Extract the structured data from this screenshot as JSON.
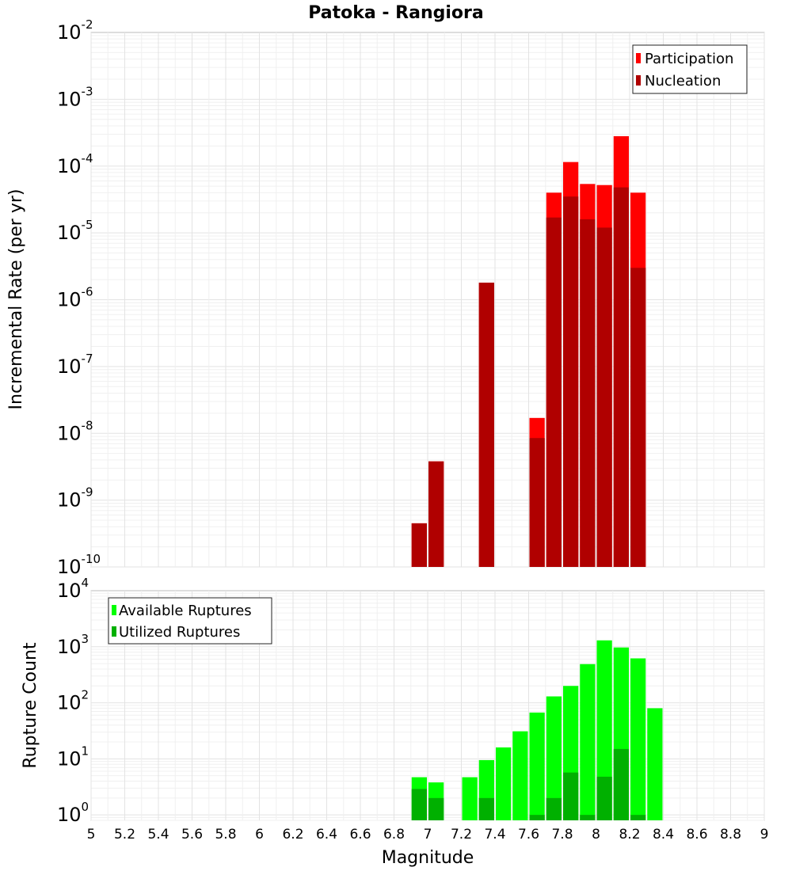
{
  "chart_data": [
    {
      "type": "bar",
      "title": "Patoka - Rangiora",
      "xlabel": "",
      "ylabel": "Incremental Rate (per yr)",
      "y_scale": "log",
      "ylim": [
        1e-10,
        0.01
      ],
      "xlim": [
        5,
        9
      ],
      "bin_width": 0.1,
      "grid": true,
      "legend_position": "top-right",
      "series": [
        {
          "name": "Participation",
          "color": "#ff0000",
          "points": [
            {
              "x": 6.95,
              "y": 4.5e-10
            },
            {
              "x": 7.05,
              "y": 3.8e-09
            },
            {
              "x": 7.35,
              "y": 1.8e-06
            },
            {
              "x": 7.65,
              "y": 1.7e-08
            },
            {
              "x": 7.75,
              "y": 4e-05
            },
            {
              "x": 7.85,
              "y": 0.000115
            },
            {
              "x": 7.95,
              "y": 5.4e-05
            },
            {
              "x": 8.05,
              "y": 5.2e-05
            },
            {
              "x": 8.15,
              "y": 0.00028
            },
            {
              "x": 8.25,
              "y": 4e-05
            }
          ]
        },
        {
          "name": "Nucleation",
          "color": "#b00000",
          "points": [
            {
              "x": 6.95,
              "y": 4.5e-10
            },
            {
              "x": 7.05,
              "y": 3.8e-09
            },
            {
              "x": 7.35,
              "y": 1.8e-06
            },
            {
              "x": 7.65,
              "y": 8.5e-09
            },
            {
              "x": 7.75,
              "y": 1.7e-05
            },
            {
              "x": 7.85,
              "y": 3.5e-05
            },
            {
              "x": 7.95,
              "y": 1.6e-05
            },
            {
              "x": 8.05,
              "y": 1.2e-05
            },
            {
              "x": 8.15,
              "y": 4.8e-05
            },
            {
              "x": 8.25,
              "y": 3e-06
            }
          ]
        }
      ]
    },
    {
      "type": "bar",
      "title": "",
      "xlabel": "Magnitude",
      "ylabel": "Rupture Count",
      "y_scale": "log",
      "ylim": [
        0.8,
        10000
      ],
      "xlim": [
        5,
        9
      ],
      "bin_width": 0.1,
      "grid": true,
      "legend_position": "top-left",
      "series": [
        {
          "name": "Available Ruptures",
          "color": "#00ff00",
          "points": [
            {
              "x": 6.95,
              "y": 4.7
            },
            {
              "x": 7.05,
              "y": 3.8
            },
            {
              "x": 7.25,
              "y": 4.7
            },
            {
              "x": 7.35,
              "y": 9.5
            },
            {
              "x": 7.45,
              "y": 16
            },
            {
              "x": 7.55,
              "y": 31
            },
            {
              "x": 7.65,
              "y": 67
            },
            {
              "x": 7.75,
              "y": 130
            },
            {
              "x": 7.85,
              "y": 200
            },
            {
              "x": 7.95,
              "y": 490
            },
            {
              "x": 8.05,
              "y": 1300
            },
            {
              "x": 8.15,
              "y": 970
            },
            {
              "x": 8.25,
              "y": 620
            },
            {
              "x": 8.35,
              "y": 80
            }
          ]
        },
        {
          "name": "Utilized Ruptures",
          "color": "#00b000",
          "points": [
            {
              "x": 6.95,
              "y": 2.9
            },
            {
              "x": 7.05,
              "y": 2
            },
            {
              "x": 7.35,
              "y": 2
            },
            {
              "x": 7.65,
              "y": 1
            },
            {
              "x": 7.75,
              "y": 2
            },
            {
              "x": 7.85,
              "y": 5.7
            },
            {
              "x": 7.95,
              "y": 1
            },
            {
              "x": 8.05,
              "y": 4.8
            },
            {
              "x": 8.15,
              "y": 15
            },
            {
              "x": 8.25,
              "y": 1
            }
          ]
        }
      ]
    }
  ],
  "x_ticks": [
    "5",
    "5.2",
    "5.4",
    "5.6",
    "5.8",
    "6",
    "6.2",
    "6.4",
    "6.6",
    "6.8",
    "7",
    "7.2",
    "7.4",
    "7.6",
    "7.8",
    "8",
    "8.2",
    "8.4",
    "8.6",
    "8.8",
    "9"
  ],
  "top_y_ticks": [
    {
      "base": "10",
      "exp": "-10"
    },
    {
      "base": "10",
      "exp": "-9"
    },
    {
      "base": "10",
      "exp": "-8"
    },
    {
      "base": "10",
      "exp": "-7"
    },
    {
      "base": "10",
      "exp": "-6"
    },
    {
      "base": "10",
      "exp": "-5"
    },
    {
      "base": "10",
      "exp": "-4"
    },
    {
      "base": "10",
      "exp": "-3"
    },
    {
      "base": "10",
      "exp": "-2"
    }
  ],
  "bottom_y_ticks": [
    {
      "base": "10",
      "exp": "0"
    },
    {
      "base": "10",
      "exp": "1"
    },
    {
      "base": "10",
      "exp": "2"
    },
    {
      "base": "10",
      "exp": "3"
    },
    {
      "base": "10",
      "exp": "4"
    }
  ]
}
